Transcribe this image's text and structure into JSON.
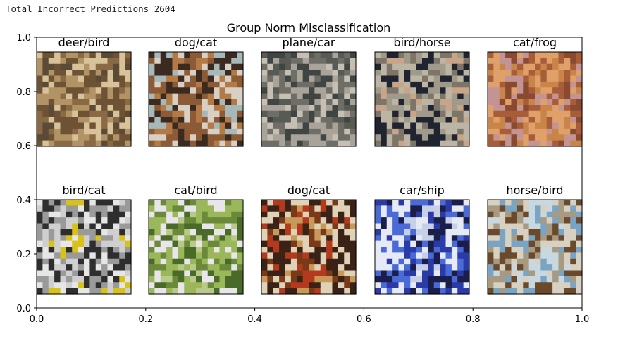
{
  "output_text": "Total Incorrect Predictions 2604",
  "chart_data": {
    "type": "image-grid",
    "title": "Group Norm Misclassification",
    "xlim": [
      0.0,
      1.0
    ],
    "ylim": [
      0.0,
      1.0
    ],
    "xticks": [
      "0.0",
      "0.2",
      "0.4",
      "0.6",
      "0.8",
      "1.0"
    ],
    "yticks": [
      "0.0",
      "0.2",
      "0.4",
      "0.6",
      "0.8",
      "1.0"
    ],
    "rows": 2,
    "cols": 5,
    "images": [
      {
        "label": "deer/bird",
        "palette": [
          "#8a6a45",
          "#b29366",
          "#6e5234",
          "#d8c29a",
          "#5a4a36"
        ]
      },
      {
        "label": "dog/cat",
        "palette": [
          "#3a2a20",
          "#8c5a34",
          "#d8d0c4",
          "#b47a45",
          "#a7b8b9"
        ]
      },
      {
        "label": "plane/car",
        "palette": [
          "#3f4542",
          "#a9a39a",
          "#6e6d66",
          "#c6bfb4",
          "#585a54"
        ]
      },
      {
        "label": "bird/horse",
        "palette": [
          "#a09a8a",
          "#1f2430",
          "#bdb5a4",
          "#7d7668",
          "#c8a488"
        ]
      },
      {
        "label": "cat/frog",
        "palette": [
          "#c98447",
          "#e0a06a",
          "#a85d3a",
          "#c49494",
          "#8a4a30"
        ]
      },
      {
        "label": "bird/cat",
        "palette": [
          "#e6e6e6",
          "#2e2e2e",
          "#9a9a9a",
          "#cfcfcf",
          "#d8c21a"
        ]
      },
      {
        "label": "cat/bird",
        "palette": [
          "#6a8a3a",
          "#9ab85a",
          "#e8e6ea",
          "#4a6a2a",
          "#b9c98a"
        ]
      },
      {
        "label": "dog/cat",
        "palette": [
          "#b33a1c",
          "#3a2216",
          "#e0d2b6",
          "#7a3a1a",
          "#c89a5a"
        ]
      },
      {
        "label": "car/ship",
        "palette": [
          "#2a3aa6",
          "#e6eaf4",
          "#4a6ad8",
          "#1a1e4a",
          "#c8d0e8"
        ]
      },
      {
        "label": "horse/bird",
        "palette": [
          "#7aa4c4",
          "#d8d0c0",
          "#6a4a2a",
          "#a89a80",
          "#c8d8e0"
        ]
      }
    ]
  }
}
